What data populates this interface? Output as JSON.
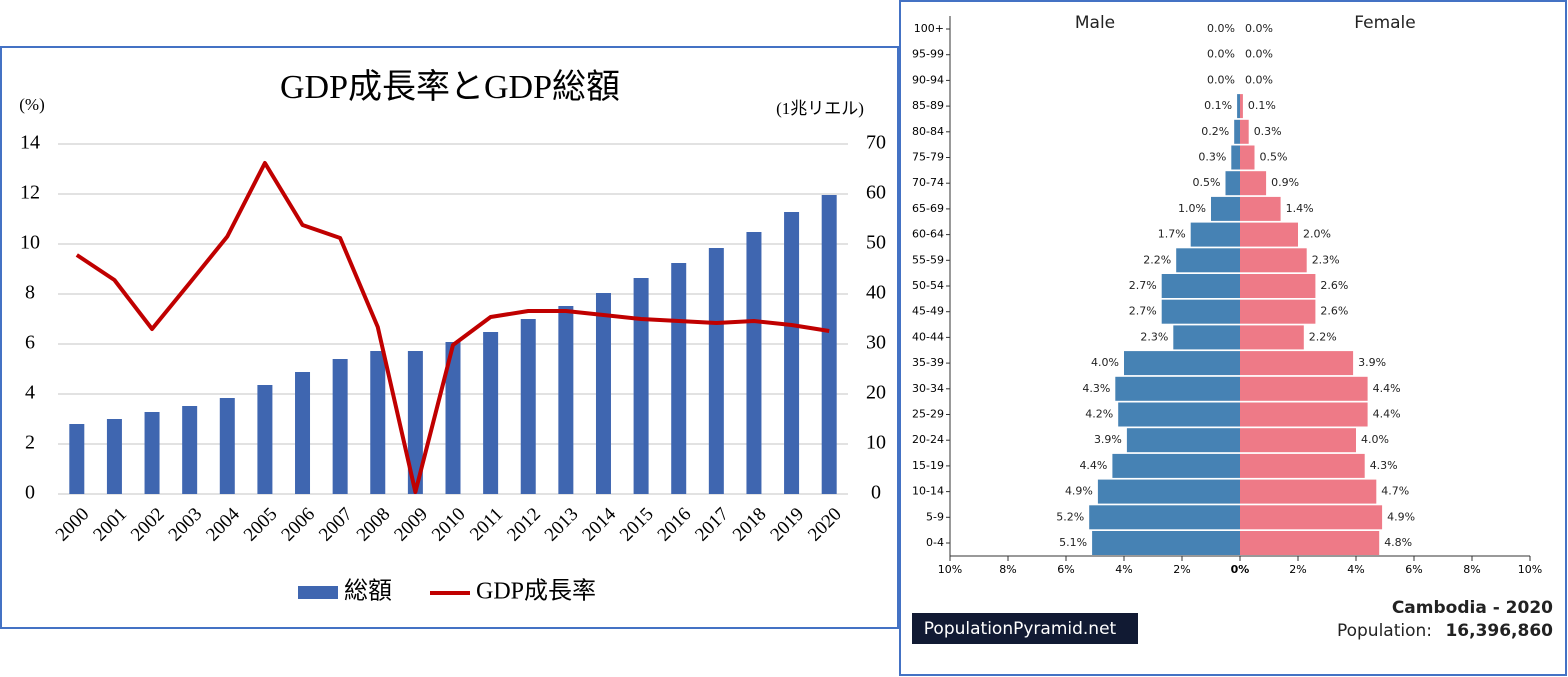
{
  "chart_data": [
    {
      "type": "combo",
      "title": "GDP成長率とGDP総額",
      "y_label": "(%)",
      "y2_label": "(1兆リエル)",
      "categories": [
        "2000",
        "2001",
        "2002",
        "2003",
        "2004",
        "2005",
        "2006",
        "2007",
        "2008",
        "2009",
        "2010",
        "2011",
        "2012",
        "2013",
        "2014",
        "2015",
        "2016",
        "2017",
        "2018",
        "2019",
        "2020"
      ],
      "series": [
        {
          "name": "総額",
          "type": "bar",
          "axis": "y2",
          "color": "#3f66b0",
          "values": [
            14.0,
            15.0,
            16.4,
            17.6,
            19.2,
            21.8,
            24.4,
            27.0,
            28.6,
            28.6,
            30.4,
            32.4,
            35.0,
            37.6,
            40.2,
            43.2,
            46.2,
            49.2,
            52.4,
            56.4,
            59.8
          ]
        },
        {
          "name": "GDP成長率",
          "type": "line",
          "color": "#c00000",
          "values": [
            9.56,
            8.56,
            6.6,
            8.44,
            10.3,
            13.24,
            10.76,
            10.24,
            6.68,
            0.08,
            5.96,
            7.08,
            7.32,
            7.32,
            7.16,
            7.0,
            6.92,
            6.84,
            6.92,
            6.76,
            6.52
          ]
        }
      ],
      "ylim": [
        0,
        14
      ],
      "yticks": [
        0,
        2,
        4,
        6,
        8,
        10,
        12,
        14
      ],
      "y2lim": [
        0,
        70
      ],
      "y2ticks": [
        0,
        10,
        20,
        30,
        40,
        50,
        60,
        70
      ],
      "grid": true,
      "legend": "bottom"
    },
    {
      "type": "pyramid",
      "categories": [
        "0-4",
        "5-9",
        "10-14",
        "15-19",
        "20-24",
        "25-29",
        "30-34",
        "35-39",
        "40-44",
        "45-49",
        "50-54",
        "55-59",
        "60-64",
        "65-69",
        "70-74",
        "75-79",
        "80-84",
        "85-89",
        "90-94",
        "95-99",
        "100+"
      ],
      "series": [
        {
          "name": "Male",
          "side": "left",
          "color": "#4682b4",
          "values": [
            5.1,
            5.2,
            4.9,
            4.4,
            3.9,
            4.2,
            4.3,
            4.0,
            2.3,
            2.7,
            2.7,
            2.2,
            1.7,
            1.0,
            0.5,
            0.3,
            0.2,
            0.1,
            0.0,
            0.0,
            0.0
          ],
          "value_labels": [
            "5.1%",
            "5.2%",
            "4.9%",
            "4.4%",
            "3.9%",
            "4.2%",
            "4.3%",
            "4.0%",
            "2.3%",
            "2.7%",
            "2.7%",
            "2.2%",
            "1.7%",
            "1.0%",
            "0.5%",
            "0.3%",
            "0.2%",
            "0.1%",
            "0.0%",
            "0.0%",
            "0.0%"
          ]
        },
        {
          "name": "Female",
          "side": "right",
          "color": "#ee7a87",
          "values": [
            4.8,
            4.9,
            4.7,
            4.3,
            4.0,
            4.4,
            4.4,
            3.9,
            2.2,
            2.6,
            2.6,
            2.3,
            2.0,
            1.4,
            0.9,
            0.5,
            0.3,
            0.1,
            0.0,
            0.0,
            0.0
          ],
          "value_labels": [
            "4.8%",
            "4.9%",
            "4.7%",
            "4.3%",
            "4.0%",
            "4.4%",
            "4.4%",
            "3.9%",
            "2.2%",
            "2.6%",
            "2.6%",
            "2.3%",
            "2.0%",
            "1.4%",
            "0.9%",
            "0.5%",
            "0.3%",
            "0.1%",
            "0.0%",
            "0.0%",
            "0.0%"
          ]
        }
      ],
      "xlim": [
        -10,
        10
      ],
      "xticks": [
        {
          "value": -10,
          "label": "10%"
        },
        {
          "value": -8,
          "label": "8%"
        },
        {
          "value": -6,
          "label": "6%"
        },
        {
          "value": -4,
          "label": "4%"
        },
        {
          "value": -2,
          "label": "2%"
        },
        {
          "value": 0,
          "label": "0%"
        },
        {
          "value": 2,
          "label": "2%"
        },
        {
          "value": 4,
          "label": "4%"
        },
        {
          "value": 6,
          "label": "6%"
        },
        {
          "value": 8,
          "label": "8%"
        },
        {
          "value": 10,
          "label": "10%"
        }
      ],
      "source": "PopulationPyramid.net",
      "subtitle": "Cambodia - 2020",
      "population_label": "Population:",
      "population": "16,396,860"
    }
  ]
}
